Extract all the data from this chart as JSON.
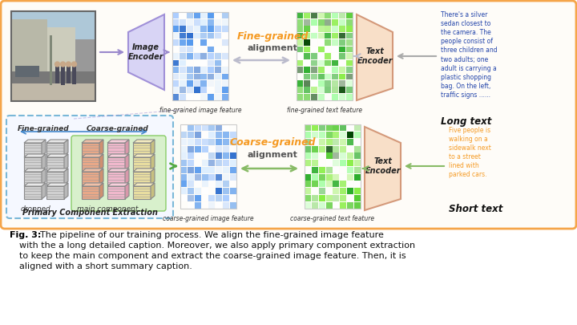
{
  "bg_color": "#ffffff",
  "orange_border": "#f5a54a",
  "dashed_border": "#7ab8d8",
  "fine_grained_color": "#f59a23",
  "coarse_grained_color": "#f59a23",
  "text_encoder_bg": "#f8dfc8",
  "image_encoder_bg": "#d8d4f5",
  "long_text_color": "#2244aa",
  "short_text_color": "#f59a23",
  "long_text_label": "Long text",
  "short_text_label": "Short text",
  "long_text_content": "There's a silver\nsedan closest to\nthe camera. The\npeople consist of\nthree children and\ntwo adults; one\nadult is carrying a\nplastic shopping\nbag. On the left,\ntraffic signs ......",
  "short_text_content": "Five people is\nwalking on a\nsidewalk next\nto a street\nlined with\nparked cars.",
  "image_encoder_label": "Image\nEncoder",
  "text_encoder_label": "Text\nEncoder",
  "fine_img_feat_label": "fine-grained image feature",
  "fine_txt_feat_label": "fine-grained text feature",
  "coarse_img_feat_label": "coarse-grained image feature",
  "coarse_txt_feat_label": "coarse-grained text feature",
  "dropped_label": "dropped",
  "main_comp_label": "main component",
  "pce_label": "Primary Component Extraction",
  "fine_grained_word": "Fine-grained",
  "coarse_grained_word": "Coarse-grained",
  "alignment_word": "alignment",
  "fine_grained_header": "Fine-grained",
  "coarse_grained_header": "Coarse-grained",
  "fig_caption_bold": "Fig. 3:",
  "fig_caption_text": " The pipeline of our training process. We align the fine-grained image feature\nwith the a long detailed caption. Moreover, we also apply primary component extraction\nto keep the main component and extract the coarse-grained image feature. Then, it is\naligned with a short summary caption."
}
